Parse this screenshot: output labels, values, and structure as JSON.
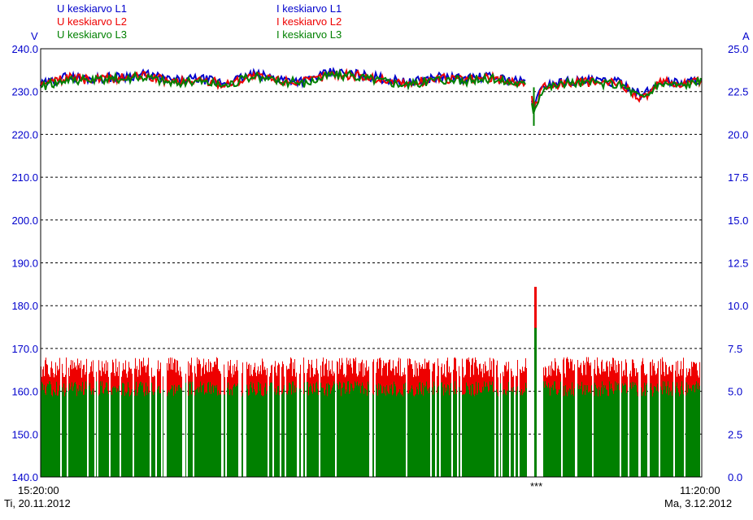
{
  "legend_left": [
    {
      "label": "U keskiarvo L1",
      "color": "#0000cc"
    },
    {
      "label": "U keskiarvo L2",
      "color": "#ee0000"
    },
    {
      "label": "U keskiarvo L3",
      "color": "#008000"
    }
  ],
  "legend_right": [
    {
      "label": "I keskiarvo L1",
      "color": "#0000cc"
    },
    {
      "label": "I keskiarvo L2",
      "color": "#ee0000"
    },
    {
      "label": "I keskiarvo L3",
      "color": "#008000"
    }
  ],
  "colors": {
    "L1": "#0000cc",
    "L2": "#ee0000",
    "L3": "#008000",
    "axis_text": "#0000cc",
    "grid": "#000000"
  },
  "x_axis": {
    "start_time": "15:20:00",
    "start_date": "Ti, 20.11.2012",
    "end_time": "11:20:00",
    "end_date": "Ma, 3.12.2012",
    "marker_label": "***",
    "marker_fraction": 0.748
  },
  "chart_data": {
    "type": "line",
    "left_axis": {
      "unit": "V",
      "min": 140,
      "max": 240,
      "ticks": [
        "140.0",
        "150.0",
        "160.0",
        "170.0",
        "180.0",
        "190.0",
        "200.0",
        "210.0",
        "220.0",
        "230.0",
        "240.0"
      ]
    },
    "right_axis": {
      "unit": "A",
      "min": 0,
      "max": 25,
      "ticks": [
        "0.0",
        "2.5",
        "5.0",
        "7.5",
        "10.0",
        "12.5",
        "15.0",
        "17.5",
        "20.0",
        "22.5",
        "25.0"
      ]
    },
    "grid": "dashed horizontal",
    "x_range": [
      "Ti, 20.11.2012 15:20:00",
      "Ma, 3.12.2012 11:20:00"
    ],
    "voltage_profile": {
      "x": [
        0,
        0.04,
        0.08,
        0.12,
        0.16,
        0.2,
        0.24,
        0.28,
        0.32,
        0.36,
        0.4,
        0.44,
        0.48,
        0.52,
        0.56,
        0.6,
        0.64,
        0.68,
        0.72,
        0.74,
        0.745,
        0.76,
        0.8,
        0.84,
        0.88,
        0.91,
        0.94,
        0.97,
        1.0
      ],
      "L1": [
        231.5,
        233.5,
        233,
        233.5,
        234,
        232.5,
        233,
        232,
        234,
        233,
        232.5,
        234.5,
        234,
        233,
        232,
        233.5,
        233,
        233.5,
        232.5,
        232,
        226,
        231.5,
        232.5,
        232.5,
        232,
        229,
        232.5,
        232,
        233
      ],
      "L2": [
        231.2,
        233.2,
        232.7,
        233.2,
        233.7,
        232.2,
        232.7,
        231.7,
        233.7,
        232.7,
        232.2,
        234.2,
        233.7,
        232.7,
        231.7,
        233.2,
        232.7,
        233.2,
        232.2,
        231.7,
        225.7,
        231.2,
        232.2,
        232.2,
        231.7,
        228.2,
        232.2,
        231.7,
        232.7
      ],
      "L3": [
        231,
        233,
        232.5,
        233,
        233.5,
        232,
        232.5,
        231.5,
        233.5,
        232.5,
        232,
        234,
        233.5,
        232.5,
        231.5,
        233,
        232.5,
        233,
        232,
        231.5,
        225.5,
        231,
        232,
        232,
        231.5,
        228.5,
        232,
        231.5,
        232.5
      ]
    },
    "current_profile": {
      "note": "dense current bars per phase",
      "typical_L2_max_A": 6.2,
      "typical_L3_A": 5.0,
      "peak_A": {
        "x": 0.748,
        "L2": 11.1,
        "L3": 8.7
      }
    }
  }
}
